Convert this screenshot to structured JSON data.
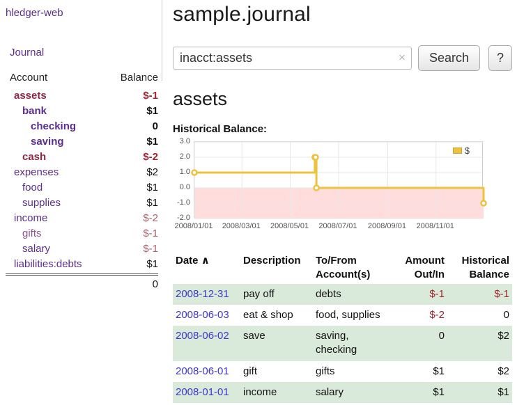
{
  "colors": {
    "link_purple": "#5c2d91",
    "current_account_maroon": "#8f2743",
    "negative_red": "#a3222d",
    "soft_negative_red": "#b0606b",
    "row_stripe_green": "#daeada",
    "chart_series_gold": "#edc240",
    "chart_negative_bg": "#ffdddd",
    "date_link_blue": "#3c37cf"
  },
  "sidebar": {
    "app_title": "hledger-web",
    "journal_link": "Journal",
    "accounts": {
      "header_account": "Account",
      "header_balance": "Balance",
      "rows": [
        {
          "name": "assets",
          "balance": "$-1"
        },
        {
          "name": "bank",
          "balance": "$1"
        },
        {
          "name": "checking",
          "balance": "0"
        },
        {
          "name": "saving",
          "balance": "$1"
        },
        {
          "name": "cash",
          "balance": "$-2"
        },
        {
          "name": "expenses",
          "balance": "$2"
        },
        {
          "name": "food",
          "balance": "$1"
        },
        {
          "name": "supplies",
          "balance": "$1"
        },
        {
          "name": "income",
          "balance": "$-2"
        },
        {
          "name": "gifts",
          "balance": "$-1"
        },
        {
          "name": "salary",
          "balance": "$-1"
        },
        {
          "name": "liabilities:debts",
          "balance": "$1"
        }
      ],
      "total": "0"
    }
  },
  "main": {
    "title": "sample.journal",
    "search": {
      "value": "inacct:assets",
      "clear": "×",
      "button": "Search",
      "help": "?"
    },
    "account_heading": "assets",
    "chart_title": "Historical Balance:"
  },
  "chart_data": {
    "type": "line",
    "step": true,
    "title": "Historical Balance:",
    "legend": {
      "label": "$",
      "position": "top-right",
      "color": "#edc240"
    },
    "ylim": [
      -2,
      3
    ],
    "x_range_days": [
      0,
      365
    ],
    "y_ticks": [
      {
        "value": 3,
        "label": "3.0"
      },
      {
        "value": 2,
        "label": "2.0"
      },
      {
        "value": 1,
        "label": "1.0"
      },
      {
        "value": 0,
        "label": "0.0"
      },
      {
        "value": -1,
        "label": "-1.0"
      },
      {
        "value": -2,
        "label": "-2.0"
      }
    ],
    "x_ticks": [
      {
        "day": 0,
        "label": "2008/01/01"
      },
      {
        "day": 60,
        "label": "2008/03/01"
      },
      {
        "day": 121,
        "label": "2008/05/01"
      },
      {
        "day": 182,
        "label": "2008/07/01"
      },
      {
        "day": 244,
        "label": "2008/09/01"
      },
      {
        "day": 305,
        "label": "2008/11/01"
      }
    ],
    "points": [
      {
        "date": "2008-01-01",
        "day": 0,
        "value": 1
      },
      {
        "date": "2008-06-01",
        "day": 152,
        "value": 2
      },
      {
        "date": "2008-06-02",
        "day": 153,
        "value": 2
      },
      {
        "date": "2008-06-03",
        "day": 154,
        "value": 0
      },
      {
        "date": "2008-12-31",
        "day": 365,
        "value": -1
      }
    ],
    "series_color": "#edc240",
    "negative_region_color": "#ffdddd",
    "grid": true
  },
  "register": {
    "headers": {
      "date": "Date",
      "sort_indicator": "∧",
      "description": "Description",
      "accounts": "To/From Account(s)",
      "amount": "Amount Out/In",
      "balance": "Historical Balance"
    },
    "rows": [
      {
        "date": "2008-12-31",
        "description": "pay off",
        "accounts": "debts",
        "amount": "$-1",
        "balance": "$-1"
      },
      {
        "date": "2008-06-03",
        "description": "eat & shop",
        "accounts": "food, supplies",
        "amount": "$-2",
        "balance": "0"
      },
      {
        "date": "2008-06-02",
        "description": "save",
        "accounts": "saving, checking",
        "amount": "0",
        "balance": "$2"
      },
      {
        "date": "2008-06-01",
        "description": "gift",
        "accounts": "gifts",
        "amount": "$1",
        "balance": "$2"
      },
      {
        "date": "2008-01-01",
        "description": "income",
        "accounts": "salary",
        "amount": "$1",
        "balance": "$1"
      }
    ]
  }
}
